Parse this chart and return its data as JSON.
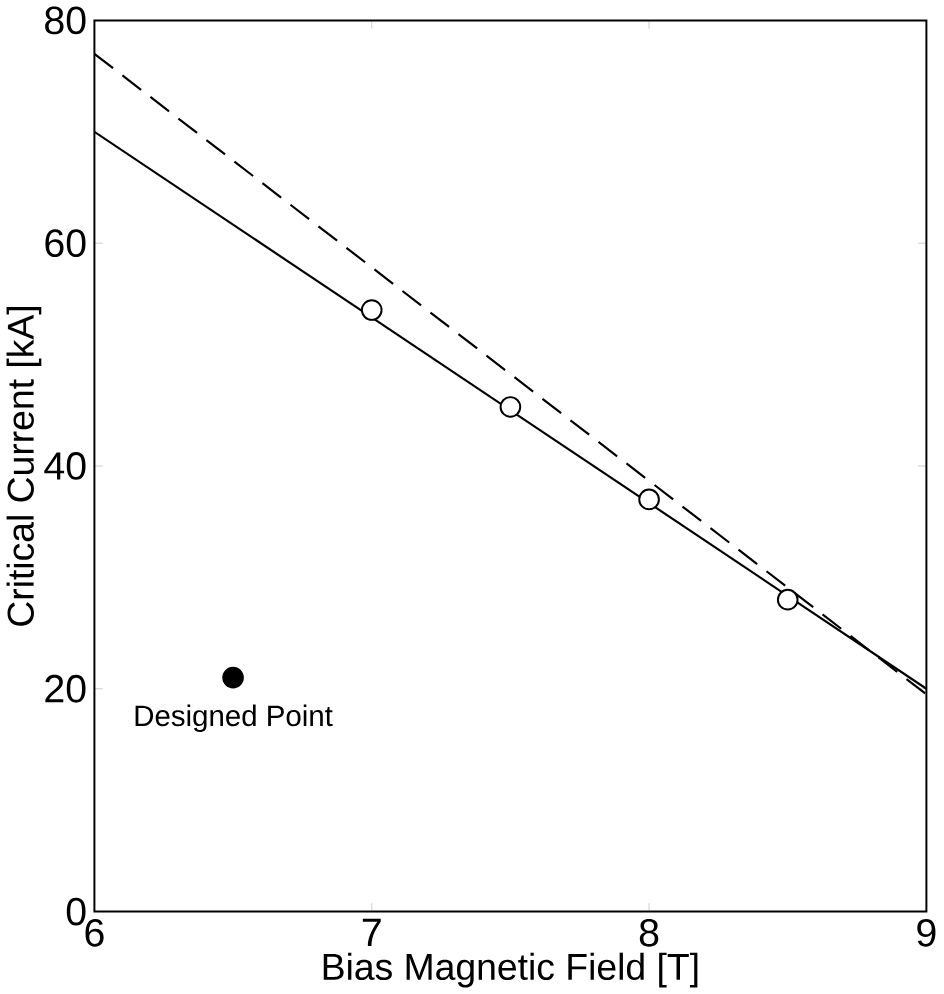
{
  "chart_data": {
    "type": "line",
    "xlabel": "Bias Magnetic Field [T]",
    "ylabel": "Critical Current [kA]",
    "xlim": [
      6,
      9
    ],
    "ylim": [
      0,
      80
    ],
    "xticks": [
      6,
      7,
      8,
      9
    ],
    "yticks": [
      0,
      20,
      40,
      60,
      80
    ],
    "grid": false,
    "series": [
      {
        "color": "#000000",
        "line_style": "solid",
        "marker": "none",
        "x": [
          6,
          9
        ],
        "values": [
          70,
          20
        ]
      },
      {
        "color": "#000000",
        "line_style": "dashed",
        "marker": "none",
        "x": [
          6,
          9
        ],
        "values": [
          77,
          19.5
        ]
      },
      {
        "type": "scatter",
        "color": "#000000",
        "colors": [
          "#ffffff",
          "#ffffff",
          "#ffffff",
          "#ffffff"
        ],
        "marker": "circle",
        "x": [
          7,
          7.5,
          8,
          8.5
        ],
        "values": [
          54,
          45.3,
          37,
          28
        ]
      },
      {
        "type": "scatter",
        "color": "#000000",
        "marker": "circle",
        "x": [
          6.5
        ],
        "values": [
          21
        ]
      }
    ],
    "annotations": [
      {
        "text": "Designed Point",
        "x": 6.5,
        "y": 21
      }
    ]
  }
}
